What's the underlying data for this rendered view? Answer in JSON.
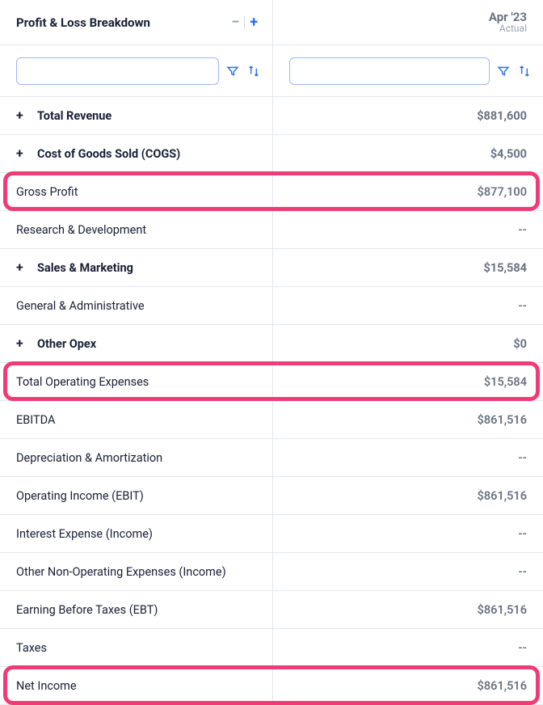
{
  "header": {
    "title": "Profit & Loss Breakdown",
    "period": "Apr '23",
    "period_sub": "Actual"
  },
  "colors": {
    "highlight": "#ef3b76",
    "accent": "#2e6ff2",
    "text": "#1a1f36",
    "muted": "#6a7383",
    "border": "#e3e7ee"
  },
  "rows": [
    {
      "label": "Total Revenue",
      "value": "$881,600",
      "expandable": true,
      "bold": true,
      "highlight": false
    },
    {
      "label": "Cost of Goods Sold (COGS)",
      "value": "$4,500",
      "expandable": true,
      "bold": true,
      "highlight": false
    },
    {
      "label": "Gross Profit",
      "value": "$877,100",
      "expandable": false,
      "bold": false,
      "highlight": true
    },
    {
      "label": "Research & Development",
      "value": "--",
      "expandable": false,
      "bold": false,
      "highlight": false
    },
    {
      "label": "Sales & Marketing",
      "value": "$15,584",
      "expandable": true,
      "bold": true,
      "highlight": false
    },
    {
      "label": "General & Administrative",
      "value": "--",
      "expandable": false,
      "bold": false,
      "highlight": false
    },
    {
      "label": "Other Opex",
      "value": "$0",
      "expandable": true,
      "bold": true,
      "highlight": false
    },
    {
      "label": "Total Operating Expenses",
      "value": "$15,584",
      "expandable": false,
      "bold": false,
      "highlight": true
    },
    {
      "label": "EBITDA",
      "value": "$861,516",
      "expandable": false,
      "bold": false,
      "highlight": false
    },
    {
      "label": "Depreciation & Amortization",
      "value": "--",
      "expandable": false,
      "bold": false,
      "highlight": false
    },
    {
      "label": "Operating Income (EBIT)",
      "value": "$861,516",
      "expandable": false,
      "bold": false,
      "highlight": false
    },
    {
      "label": "Interest Expense (Income)",
      "value": "--",
      "expandable": false,
      "bold": false,
      "highlight": false
    },
    {
      "label": "Other Non-Operating Expenses (Income)",
      "value": "--",
      "expandable": false,
      "bold": false,
      "highlight": false
    },
    {
      "label": "Earning Before Taxes (EBT)",
      "value": "$861,516",
      "expandable": false,
      "bold": false,
      "highlight": false
    },
    {
      "label": "Taxes",
      "value": "--",
      "expandable": false,
      "bold": false,
      "highlight": false
    },
    {
      "label": "Net Income",
      "value": "$861,516",
      "expandable": false,
      "bold": false,
      "highlight": true
    }
  ]
}
